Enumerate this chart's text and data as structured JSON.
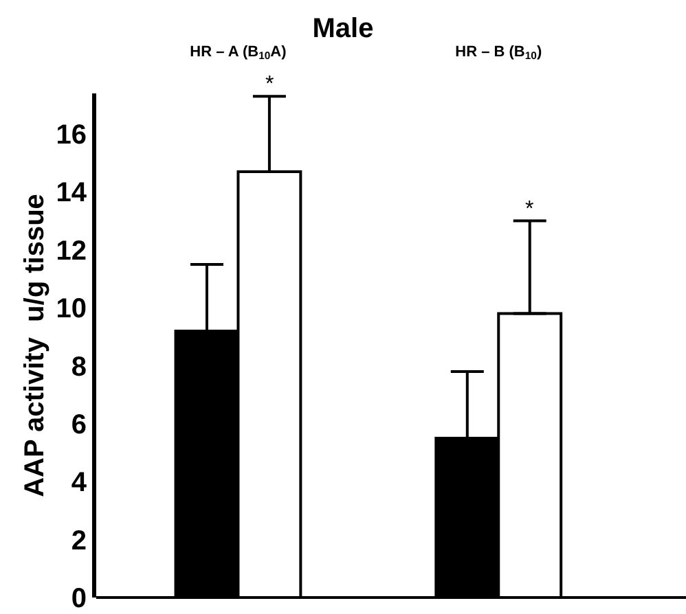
{
  "chart_data": {
    "type": "bar",
    "title": "Male",
    "ylabel": "AAP activity  u/g tissue",
    "categories": [
      "HR – A (B$_{10}$A)",
      "HR – B (B$_{10}$)"
    ],
    "series": [
      {
        "color": "#000000",
        "values": [
          9.2,
          5.5
        ],
        "errors": [
          [
            9.2,
            11.5
          ],
          [
            5.5,
            7.8
          ]
        ]
      },
      {
        "color": "#ffffff",
        "values": [
          14.7,
          9.8
        ],
        "errors": [
          [
            14.7,
            17.3
          ],
          [
            9.8,
            13.0
          ]
        ]
      }
    ],
    "annotations": [
      "*",
      "*"
    ],
    "ylim": [
      0,
      17.4
    ],
    "yticks": [
      0,
      2,
      4,
      6,
      8,
      10,
      12,
      14,
      16
    ],
    "grid": false
  }
}
